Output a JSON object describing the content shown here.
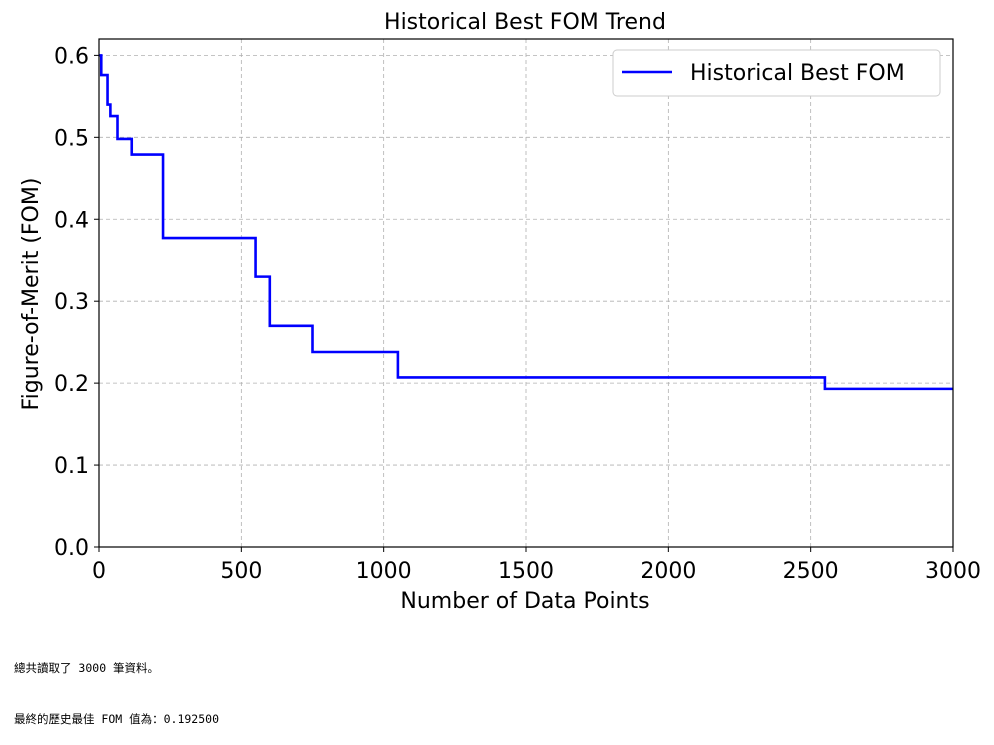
{
  "chart_data": {
    "type": "line",
    "title": "Historical Best FOM Trend",
    "xlabel": "Number of Data Points",
    "ylabel": "Figure-of-Merit (FOM)",
    "xlim": [
      0,
      3000
    ],
    "ylim": [
      0,
      0.62
    ],
    "xticks": [
      0,
      500,
      1000,
      1500,
      2000,
      2500,
      3000
    ],
    "yticks": [
      0.0,
      0.1,
      0.2,
      0.3,
      0.4,
      0.5,
      0.6
    ],
    "xtick_labels": [
      "0",
      "500",
      "1000",
      "1500",
      "2000",
      "2500",
      "3000"
    ],
    "ytick_labels": [
      "0.0",
      "0.1",
      "0.2",
      "0.3",
      "0.4",
      "0.5",
      "0.6"
    ],
    "grid": true,
    "legend_position": "top-right",
    "step": true,
    "series": [
      {
        "name": "Historical Best FOM",
        "color": "#0000ff",
        "x": [
          0,
          8,
          30,
          40,
          65,
          115,
          225,
          550,
          600,
          750,
          1050,
          2550,
          3000
        ],
        "y": [
          0.6,
          0.576,
          0.54,
          0.526,
          0.498,
          0.479,
          0.377,
          0.33,
          0.27,
          0.238,
          0.207,
          0.193,
          0.193
        ]
      }
    ]
  },
  "output": {
    "line1": "總共讀取了 3000 筆資料。",
    "line2": "最終的歷史最佳 FOM 值為：0.192500"
  }
}
